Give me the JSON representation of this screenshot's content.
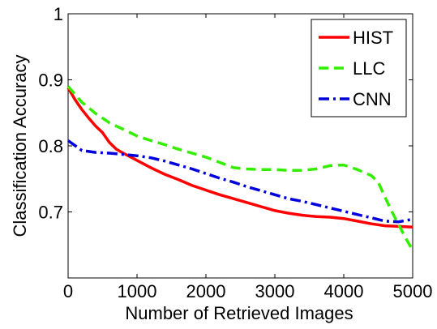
{
  "chart_data": {
    "type": "line",
    "title": "",
    "xlabel": "Number of Retrieved Images",
    "ylabel": "Classification Accuracy",
    "xlim": [
      0,
      5000
    ],
    "ylim": [
      0.6,
      1.0
    ],
    "xticks": [
      0,
      1000,
      2000,
      3000,
      4000,
      5000
    ],
    "yticks": [
      0.7,
      0.8,
      0.9,
      1.0
    ],
    "xtick_labels": [
      "0",
      "1000",
      "2000",
      "3000",
      "4000",
      "5000"
    ],
    "ytick_labels": [
      "0.7",
      "0.8",
      "0.9",
      "1"
    ],
    "grid": false,
    "legend_position": "top-right",
    "series": [
      {
        "name": "HIST",
        "color": "#ff0000",
        "dash": "solid",
        "x": [
          0,
          100,
          200,
          300,
          400,
          500,
          600,
          700,
          800,
          1000,
          1200,
          1400,
          1600,
          1800,
          2000,
          2200,
          2400,
          2600,
          2800,
          3000,
          3200,
          3400,
          3600,
          3800,
          4000,
          4200,
          4400,
          4600,
          4800,
          5000
        ],
        "y": [
          0.888,
          0.87,
          0.855,
          0.842,
          0.83,
          0.82,
          0.805,
          0.795,
          0.789,
          0.778,
          0.767,
          0.757,
          0.749,
          0.74,
          0.733,
          0.726,
          0.72,
          0.714,
          0.708,
          0.702,
          0.698,
          0.695,
          0.693,
          0.692,
          0.69,
          0.686,
          0.682,
          0.679,
          0.678,
          0.677
        ]
      },
      {
        "name": "LLC",
        "color": "#33ee00",
        "dash": "dashed",
        "x": [
          0,
          200,
          400,
          600,
          800,
          1000,
          1200,
          1400,
          1600,
          1800,
          2000,
          2200,
          2400,
          2600,
          2800,
          3000,
          3200,
          3400,
          3600,
          3800,
          4000,
          4200,
          4400,
          4500,
          4600,
          4700,
          4800,
          4900,
          5000
        ],
        "y": [
          0.89,
          0.866,
          0.849,
          0.835,
          0.825,
          0.815,
          0.808,
          0.802,
          0.795,
          0.789,
          0.783,
          0.775,
          0.767,
          0.765,
          0.764,
          0.764,
          0.763,
          0.763,
          0.765,
          0.77,
          0.771,
          0.764,
          0.755,
          0.745,
          0.722,
          0.7,
          0.68,
          0.66,
          0.642
        ]
      },
      {
        "name": "CNN",
        "color": "#0000dd",
        "dash": "dashdot",
        "x": [
          0,
          200,
          400,
          600,
          800,
          1000,
          1200,
          1400,
          1600,
          1800,
          2000,
          2200,
          2400,
          2600,
          2800,
          3000,
          3200,
          3400,
          3600,
          3800,
          4000,
          4200,
          4400,
          4600,
          4800,
          5000
        ],
        "y": [
          0.808,
          0.793,
          0.79,
          0.789,
          0.787,
          0.785,
          0.782,
          0.777,
          0.771,
          0.765,
          0.758,
          0.751,
          0.745,
          0.738,
          0.732,
          0.726,
          0.72,
          0.716,
          0.711,
          0.706,
          0.701,
          0.696,
          0.691,
          0.686,
          0.685,
          0.689
        ]
      }
    ]
  }
}
